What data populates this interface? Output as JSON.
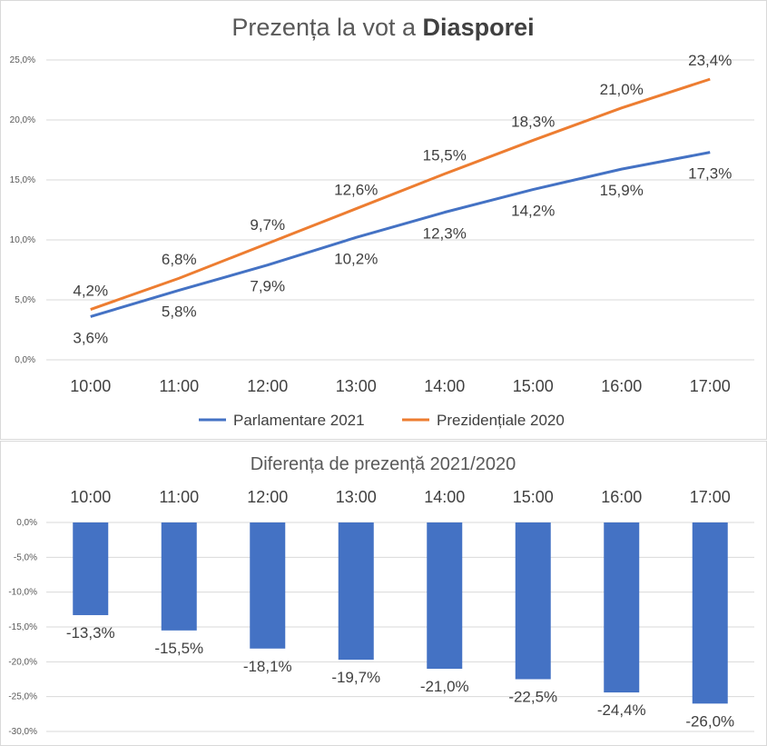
{
  "chart_data": [
    {
      "type": "line",
      "title": "Prezența la vot a",
      "title_bold": "Diasporei",
      "categories": [
        "10:00",
        "11:00",
        "12:00",
        "13:00",
        "14:00",
        "15:00",
        "16:00",
        "17:00"
      ],
      "series": [
        {
          "name": "Parlamentare 2021",
          "color": "#4472c4",
          "values": [
            3.6,
            5.8,
            7.9,
            10.2,
            12.3,
            14.2,
            15.9,
            17.3
          ],
          "labels": [
            "3,6%",
            "5,8%",
            "7,9%",
            "10,2%",
            "12,3%",
            "14,2%",
            "15,9%",
            "17,3%"
          ]
        },
        {
          "name": "Prezidențiale 2020",
          "color": "#ed7d31",
          "values": [
            4.2,
            6.8,
            9.7,
            12.6,
            15.5,
            18.3,
            21.0,
            23.4
          ],
          "labels": [
            "4,2%",
            "6,8%",
            "9,7%",
            "12,6%",
            "15,5%",
            "18,3%",
            "21,0%",
            "23,4%"
          ]
        }
      ],
      "ylim": [
        0,
        25
      ],
      "yticks": [
        "0,0%",
        "5,0%",
        "10,0%",
        "15,0%",
        "20,0%",
        "25,0%"
      ],
      "grid": true,
      "legend": "bottom"
    },
    {
      "type": "bar",
      "title": "Diferența de prezență 2021/2020",
      "categories": [
        "10:00",
        "11:00",
        "12:00",
        "13:00",
        "14:00",
        "15:00",
        "16:00",
        "17:00"
      ],
      "series": [
        {
          "color": "#4472c4",
          "values": [
            -13.3,
            -15.5,
            -18.1,
            -19.7,
            -21.0,
            -22.5,
            -24.4,
            -26.0
          ],
          "labels": [
            "-13,3%",
            "-15,5%",
            "-18,1%",
            "-19,7%",
            "-21,0%",
            "-22,5%",
            "-24,4%",
            "-26,0%"
          ]
        }
      ],
      "ylim": [
        -30,
        0
      ],
      "yticks": [
        "0,0%",
        "-5,0%",
        "-10,0%",
        "-15,0%",
        "-20,0%",
        "-25,0%",
        "-30,0%"
      ],
      "grid": true,
      "xaxis_position": "top"
    }
  ]
}
